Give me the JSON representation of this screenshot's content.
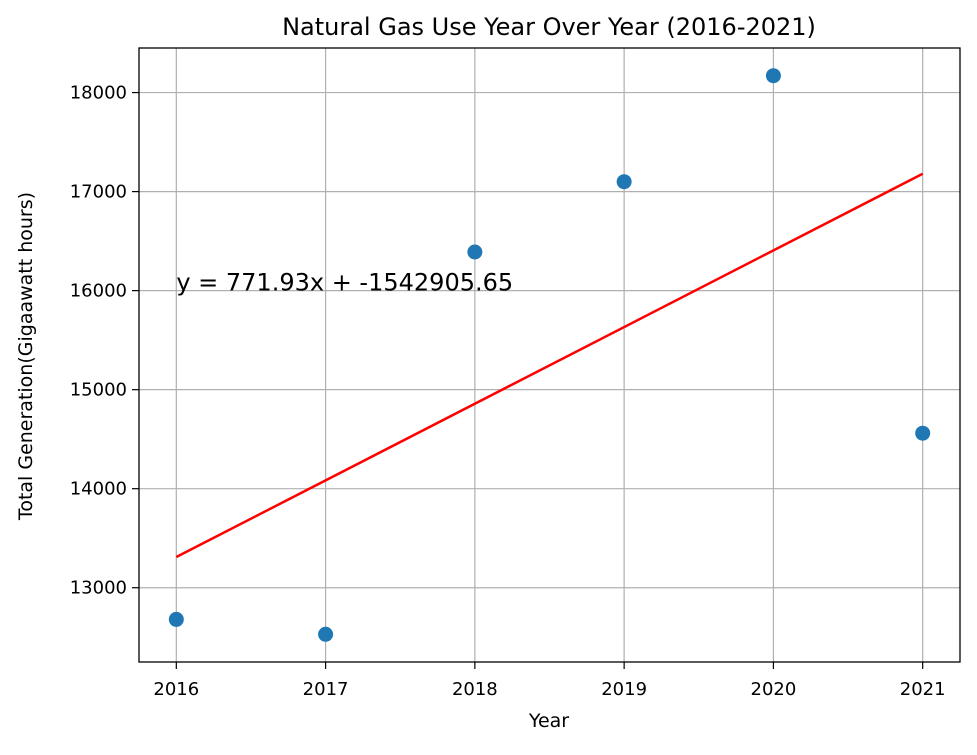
{
  "chart_data": {
    "type": "scatter",
    "title": "Natural Gas Use Year Over Year (2016-2021)",
    "xlabel": "Year",
    "ylabel": "Total Generation(Gigaawatt hours)",
    "x": [
      2016,
      2017,
      2018,
      2019,
      2020,
      2021
    ],
    "x_tick_labels": [
      "2016",
      "2017",
      "2018",
      "2019",
      "2020",
      "2021"
    ],
    "y_tick_labels": [
      "13000",
      "14000",
      "15000",
      "16000",
      "17000",
      "18000"
    ],
    "y_ticks": [
      13000,
      14000,
      15000,
      16000,
      17000,
      18000
    ],
    "xlim": [
      2015.75,
      2021.25
    ],
    "ylim": [
      12250,
      18450
    ],
    "grid": true,
    "series": [
      {
        "type": "scatter",
        "x": [
          2016,
          2017,
          2018,
          2019,
          2020,
          2021
        ],
        "values": [
          12680,
          12530,
          16390,
          17100,
          18170,
          14560
        ],
        "color": "#1f77b4"
      },
      {
        "type": "line",
        "x": [
          2016,
          2021
        ],
        "values": [
          13310,
          17180
        ],
        "color": "#ff0000"
      }
    ],
    "annotations": [
      {
        "text": "y = 771.93x + -1542905.65",
        "x": 2016,
        "y": 16000
      }
    ]
  }
}
